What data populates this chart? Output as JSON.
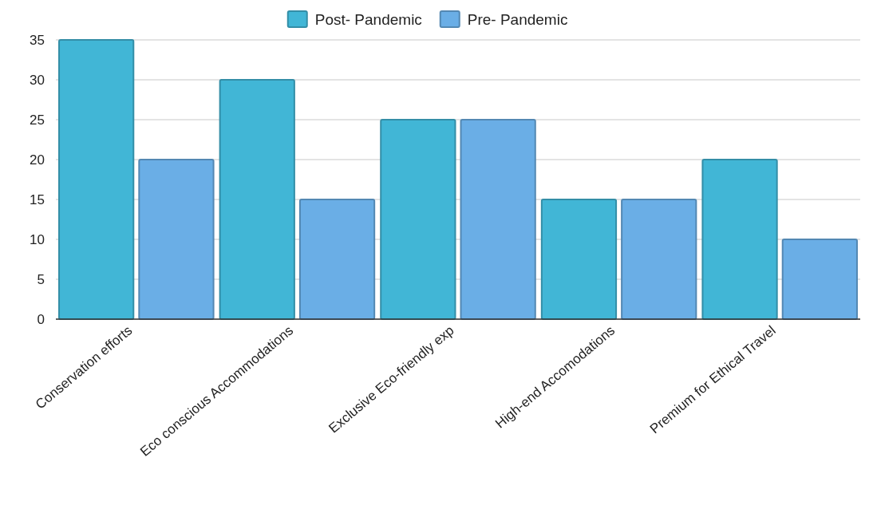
{
  "chart_data": {
    "type": "bar",
    "categories": [
      "Conservation efforts",
      "Eco conscious Accommodations",
      "Exclusive Eco-friendly exp",
      "High-end Accomodations",
      "Premium for Ethical Travel"
    ],
    "series": [
      {
        "name": "Post- Pandemic",
        "color": "#41b6d6",
        "values": [
          35,
          30,
          25,
          15,
          20
        ]
      },
      {
        "name": "Pre- Pandemic",
        "color": "#6aaee6",
        "values": [
          20,
          15,
          25,
          15,
          10
        ]
      }
    ],
    "ylim": [
      0,
      35
    ],
    "yticks": [
      0,
      5,
      10,
      15,
      20,
      25,
      30,
      35
    ],
    "grid": "y",
    "legend": "top"
  }
}
